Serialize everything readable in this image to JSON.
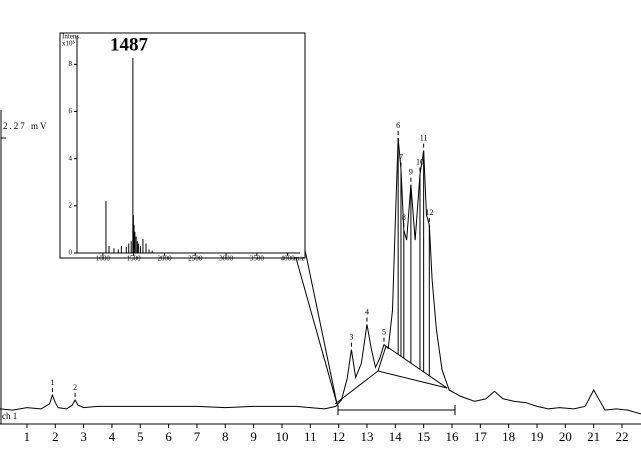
{
  "chart_data": [
    {
      "type": "line",
      "color": "#000000",
      "x": [
        0.05,
        0.5,
        1.0,
        1.5,
        1.8,
        1.9,
        2.0,
        2.1,
        2.4,
        2.6,
        2.7,
        2.8,
        3.0,
        3.5,
        4.0,
        5,
        6,
        7,
        8,
        9,
        10,
        10.5,
        11,
        11.5,
        11.9,
        12.1,
        12.3,
        12.45,
        12.6,
        12.8,
        13.0,
        13.15,
        13.3,
        13.45,
        13.6,
        13.75,
        13.9,
        14.0,
        14.1,
        14.2,
        14.3,
        14.4,
        14.55,
        14.7,
        14.87,
        15.0,
        15.1,
        15.2,
        15.3,
        15.45,
        15.65,
        15.9,
        16.3,
        16.8,
        17.2,
        17.5,
        17.8,
        18.2,
        18.6,
        19.0,
        19.4,
        19.8,
        20.3,
        20.7,
        21.0,
        21.2,
        21.4,
        21.8,
        22.2,
        22.67
      ],
      "values": [
        0.12,
        0.11,
        0.13,
        0.12,
        0.16,
        0.23,
        0.17,
        0.13,
        0.12,
        0.15,
        0.19,
        0.15,
        0.13,
        0.14,
        0.14,
        0.14,
        0.14,
        0.14,
        0.13,
        0.14,
        0.14,
        0.14,
        0.13,
        0.12,
        0.14,
        0.19,
        0.36,
        0.59,
        0.37,
        0.48,
        0.79,
        0.6,
        0.45,
        0.52,
        0.63,
        0.6,
        0.9,
        1.6,
        2.27,
        2.02,
        1.54,
        1.46,
        1.9,
        1.46,
        1.98,
        2.17,
        1.66,
        1.58,
        1.14,
        0.75,
        0.43,
        0.27,
        0.22,
        0.18,
        0.2,
        0.26,
        0.2,
        0.18,
        0.17,
        0.14,
        0.12,
        0.13,
        0.12,
        0.14,
        0.27,
        0.19,
        0.11,
        0.12,
        0.11,
        0.08
      ],
      "xlim": [
        0.05,
        22.67
      ],
      "xticks": [
        1,
        2,
        3,
        4,
        5,
        6,
        7,
        8,
        9,
        10,
        11,
        12,
        13,
        14,
        15,
        16,
        17,
        18,
        19,
        20,
        21,
        22
      ],
      "ylim": [
        0,
        2.27
      ],
      "yticks": [
        {
          "value": 2.27,
          "label": "2.27 mV"
        }
      ],
      "channel": "ch 1",
      "peaks": [
        {
          "label": "1",
          "x": 1.9,
          "y": 0.23
        },
        {
          "label": "2",
          "x": 2.7,
          "y": 0.19
        },
        {
          "label": "3",
          "x": 12.45,
          "y": 0.59
        },
        {
          "label": "4",
          "x": 13.0,
          "y": 0.79
        },
        {
          "label": "5",
          "x": 13.6,
          "y": 0.63
        },
        {
          "label": "6",
          "x": 14.1,
          "y": 2.27
        },
        {
          "label": "7",
          "x": 14.2,
          "y": 2.02
        },
        {
          "label": "8",
          "x": 14.3,
          "y": 1.54
        },
        {
          "label": "9",
          "x": 14.55,
          "y": 1.9
        },
        {
          "label": "10",
          "x": 14.87,
          "y": 1.98
        },
        {
          "label": "11",
          "x": 15.0,
          "y": 2.17
        },
        {
          "label": "12",
          "x": 15.2,
          "y": 1.58
        }
      ]
    },
    {
      "type": "stem",
      "color": "#000000",
      "x": [
        1050,
        1100,
        1180,
        1250,
        1300,
        1380,
        1420,
        1460,
        1487,
        1495,
        1505,
        1520,
        1540,
        1560,
        1580,
        1610,
        1650,
        1700,
        1750,
        1800
      ],
      "values": [
        2.2,
        0.3,
        0.2,
        0.15,
        0.3,
        0.25,
        0.4,
        0.5,
        8.26,
        1.6,
        1.2,
        0.9,
        0.7,
        0.5,
        0.4,
        0.3,
        0.6,
        0.4,
        0.15,
        0.1
      ],
      "xlim": [
        580,
        4200
      ],
      "xticks": [
        1000,
        1500,
        2000,
        2500,
        3000,
        3500,
        4000
      ],
      "ylim": [
        0,
        9.2
      ],
      "yticks": [
        0,
        2,
        4,
        6,
        8
      ],
      "ylabel": [
        "Intens.",
        "x10⁵"
      ],
      "xlabel": "m/z",
      "annotation": "1487"
    }
  ]
}
